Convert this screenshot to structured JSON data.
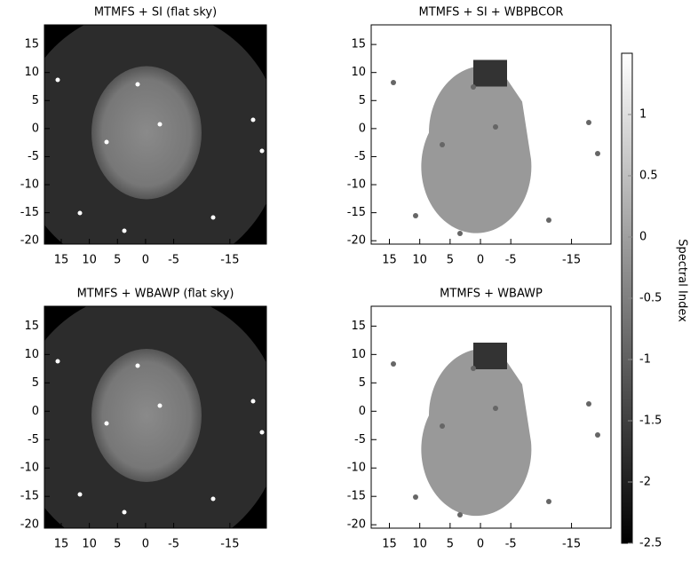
{
  "chart_data": [
    {
      "type": "image",
      "title": "MTMFS + SI  (flat sky)",
      "xlim": [
        18,
        -21.5
      ],
      "ylim": [
        -20.6,
        18.5
      ],
      "xticks": [
        15,
        10,
        5,
        0,
        -5,
        -15
      ],
      "yticks": [
        15,
        10,
        5,
        0,
        -5,
        -10,
        -15,
        -20
      ]
    },
    {
      "type": "image",
      "title": "MTMFS + SI + WBPBCOR",
      "xlim": [
        18,
        -21.5
      ],
      "ylim": [
        -20.6,
        18.5
      ],
      "xticks": [
        15,
        10,
        5,
        0,
        -5,
        -15
      ],
      "yticks": [
        15,
        10,
        5,
        0,
        -5,
        -10,
        -15,
        -20
      ]
    },
    {
      "type": "image",
      "title": "MTMFS + WBAWP (flat sky)",
      "xlim": [
        18,
        -21.5
      ],
      "ylim": [
        -20.6,
        18.5
      ],
      "xticks": [
        15,
        10,
        5,
        0,
        -5,
        -15
      ],
      "yticks": [
        15,
        10,
        5,
        0,
        -5,
        -10,
        -15,
        -20
      ]
    },
    {
      "type": "image",
      "title": "MTMFS + WBAWP",
      "xlim": [
        18,
        -21.5
      ],
      "ylim": [
        -20.6,
        18.5
      ],
      "xticks": [
        15,
        10,
        5,
        0,
        -5,
        -15
      ],
      "yticks": [
        15,
        10,
        5,
        0,
        -5,
        -10,
        -15,
        -20
      ]
    },
    {
      "type": "colorbar",
      "label": "Spectral Index",
      "ylim": [
        -2.5,
        1.5
      ],
      "yticks": [
        1,
        0.5,
        0,
        -0.5,
        -1,
        -1.5,
        -2,
        -2.5
      ]
    }
  ]
}
